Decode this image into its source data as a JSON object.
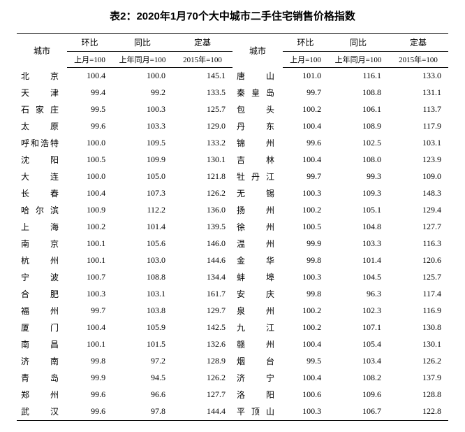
{
  "title": "表2：2020年1月70个大中城市二手住宅销售价格指数",
  "headers": {
    "city": "城市",
    "mom": "环比",
    "yoy": "同比",
    "base": "定基",
    "mom_sub": "上月=100",
    "yoy_sub": "上年同月=100",
    "base_sub": "2015年=100"
  },
  "left": [
    {
      "city": "北京",
      "mom": "100.4",
      "yoy": "100.0",
      "base": "145.1"
    },
    {
      "city": "天津",
      "mom": "99.4",
      "yoy": "99.2",
      "base": "133.5"
    },
    {
      "city": "石家庄",
      "mom": "99.5",
      "yoy": "100.3",
      "base": "125.7"
    },
    {
      "city": "太原",
      "mom": "99.6",
      "yoy": "103.3",
      "base": "129.0"
    },
    {
      "city": "呼和浩特",
      "mom": "100.0",
      "yoy": "109.5",
      "base": "133.2"
    },
    {
      "city": "沈阳",
      "mom": "100.5",
      "yoy": "109.9",
      "base": "130.1"
    },
    {
      "city": "大连",
      "mom": "100.0",
      "yoy": "105.0",
      "base": "121.8"
    },
    {
      "city": "长春",
      "mom": "100.4",
      "yoy": "107.3",
      "base": "126.2"
    },
    {
      "city": "哈尔滨",
      "mom": "100.9",
      "yoy": "112.2",
      "base": "136.0"
    },
    {
      "city": "上海",
      "mom": "100.2",
      "yoy": "101.4",
      "base": "139.5"
    },
    {
      "city": "南京",
      "mom": "100.1",
      "yoy": "105.6",
      "base": "146.0"
    },
    {
      "city": "杭州",
      "mom": "100.1",
      "yoy": "103.0",
      "base": "144.6"
    },
    {
      "city": "宁波",
      "mom": "100.7",
      "yoy": "108.8",
      "base": "134.4"
    },
    {
      "city": "合肥",
      "mom": "100.3",
      "yoy": "103.1",
      "base": "161.7"
    },
    {
      "city": "福州",
      "mom": "99.7",
      "yoy": "103.8",
      "base": "129.7"
    },
    {
      "city": "厦门",
      "mom": "100.4",
      "yoy": "105.9",
      "base": "142.5"
    },
    {
      "city": "南昌",
      "mom": "100.1",
      "yoy": "101.5",
      "base": "132.6"
    },
    {
      "city": "济南",
      "mom": "99.8",
      "yoy": "97.2",
      "base": "128.9"
    },
    {
      "city": "青岛",
      "mom": "99.9",
      "yoy": "94.5",
      "base": "126.2"
    },
    {
      "city": "郑州",
      "mom": "99.6",
      "yoy": "96.6",
      "base": "127.7"
    },
    {
      "city": "武汉",
      "mom": "99.6",
      "yoy": "97.8",
      "base": "144.4"
    }
  ],
  "right": [
    {
      "city": "唐山",
      "mom": "101.0",
      "yoy": "116.1",
      "base": "133.0"
    },
    {
      "city": "秦皇岛",
      "mom": "99.7",
      "yoy": "108.8",
      "base": "131.1"
    },
    {
      "city": "包头",
      "mom": "100.2",
      "yoy": "106.1",
      "base": "113.7"
    },
    {
      "city": "丹东",
      "mom": "100.4",
      "yoy": "108.9",
      "base": "117.9"
    },
    {
      "city": "锦州",
      "mom": "99.6",
      "yoy": "102.5",
      "base": "103.1"
    },
    {
      "city": "吉林",
      "mom": "100.4",
      "yoy": "108.0",
      "base": "123.9"
    },
    {
      "city": "牡丹江",
      "mom": "99.7",
      "yoy": "99.3",
      "base": "109.0"
    },
    {
      "city": "无锡",
      "mom": "100.3",
      "yoy": "109.3",
      "base": "148.3"
    },
    {
      "city": "扬州",
      "mom": "100.2",
      "yoy": "105.1",
      "base": "129.4"
    },
    {
      "city": "徐州",
      "mom": "100.5",
      "yoy": "104.8",
      "base": "127.7"
    },
    {
      "city": "温州",
      "mom": "99.9",
      "yoy": "103.3",
      "base": "116.3"
    },
    {
      "city": "金华",
      "mom": "99.8",
      "yoy": "101.4",
      "base": "120.6"
    },
    {
      "city": "蚌埠",
      "mom": "100.3",
      "yoy": "104.5",
      "base": "125.7"
    },
    {
      "city": "安庆",
      "mom": "99.8",
      "yoy": "96.3",
      "base": "117.4"
    },
    {
      "city": "泉州",
      "mom": "100.2",
      "yoy": "102.3",
      "base": "116.9"
    },
    {
      "city": "九江",
      "mom": "100.2",
      "yoy": "107.1",
      "base": "130.8"
    },
    {
      "city": "赣州",
      "mom": "100.4",
      "yoy": "105.4",
      "base": "130.1"
    },
    {
      "city": "烟台",
      "mom": "99.5",
      "yoy": "103.4",
      "base": "126.2"
    },
    {
      "city": "济宁",
      "mom": "100.4",
      "yoy": "108.2",
      "base": "137.9"
    },
    {
      "city": "洛阳",
      "mom": "100.6",
      "yoy": "109.6",
      "base": "128.8"
    },
    {
      "city": "平顶山",
      "mom": "100.3",
      "yoy": "106.7",
      "base": "122.8"
    }
  ]
}
